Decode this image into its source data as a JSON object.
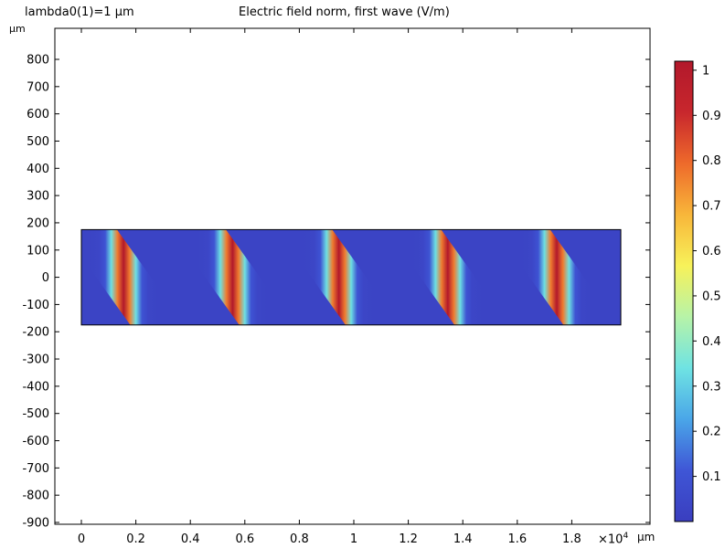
{
  "header": {
    "param_label": "lambda0(1)=1 µm",
    "title": "Electric field norm, first wave (V/m)"
  },
  "axes": {
    "y_unit": "µm",
    "x_unit": "µm",
    "x_multiplier": "×10",
    "x_multiplier_exp": "4"
  },
  "chart_data": {
    "type": "heatmap",
    "title": "Electric field norm, first wave (V/m)",
    "xlabel": "µm",
    "ylabel": "µm",
    "x_scale_note": "×10^4",
    "xlim": [
      -0.95,
      2.08
    ],
    "ylim": [
      -910,
      915
    ],
    "x_ticks": [
      0,
      0.2,
      0.4,
      0.6,
      0.8,
      1,
      1.2,
      1.4,
      1.6,
      1.8
    ],
    "x_tick_labels": [
      "0",
      "0.2",
      "0.4",
      "0.6",
      "0.8",
      "1",
      "1.2",
      "1.4",
      "1.6",
      "1.8"
    ],
    "y_ticks": [
      800,
      700,
      600,
      500,
      400,
      300,
      200,
      100,
      0,
      -100,
      -200,
      -300,
      -400,
      -500,
      -600,
      -700,
      -800,
      -900
    ],
    "y_tick_labels": [
      "800",
      "700",
      "600",
      "500",
      "400",
      "300",
      "200",
      "100",
      "0",
      "-100",
      "-200",
      "-300",
      "-400",
      "-500",
      "-600",
      "-700",
      "-800",
      "-900"
    ],
    "domain": {
      "x": [
        0,
        1.98
      ],
      "y": [
        -175,
        175
      ]
    },
    "field": {
      "stripe_peak_x_at_bottom": [
        0.28,
        0.68,
        1.08,
        1.48,
        1.88
      ],
      "stripe_peak_x_at_top": [
        0.03,
        0.43,
        0.82,
        1.22,
        1.62
      ],
      "stripe_period_x": 0.4,
      "peak_value": 1.0,
      "background_value": 0.03
    },
    "colorbar": {
      "ticks": [
        0.1,
        0.2,
        0.3,
        0.4,
        0.5,
        0.6,
        0.7,
        0.8,
        0.9,
        1
      ],
      "tick_labels": [
        "0.1",
        "0.2",
        "0.3",
        "0.4",
        "0.5",
        "0.6",
        "0.7",
        "0.8",
        "0.9",
        "1"
      ],
      "range": [
        0,
        1.02
      ],
      "colormap": "rainbow",
      "colors": [
        "#3a3ebf",
        "#3f56d6",
        "#4aa6e8",
        "#6fe3e3",
        "#b7f3a8",
        "#f7f25a",
        "#f8b63a",
        "#ee6a2b",
        "#c8272d",
        "#b2182b"
      ]
    }
  }
}
